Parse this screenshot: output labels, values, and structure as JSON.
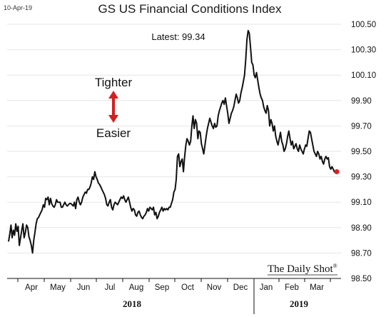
{
  "date_stamp": "10-Apr-19",
  "latest_label": "Latest:  99.34",
  "annotation": {
    "up_label": "Tighter",
    "down_label": "Easier",
    "arrow_color": "#d42020"
  },
  "brand": "The Daily Shot",
  "brand_mark": "®",
  "chart_data": {
    "type": "line",
    "title": "GS US Financial Conditions Index",
    "xlabel": "",
    "ylabel": "",
    "ylim": [
      98.5,
      100.5
    ],
    "yticks": [
      "100.50",
      "100.30",
      "100.10",
      "99.90",
      "99.70",
      "99.50",
      "99.30",
      "99.10",
      "98.90",
      "98.70",
      "98.50"
    ],
    "month_labels": [
      "Apr",
      "May",
      "Jun",
      "Jul",
      "Aug",
      "Sep",
      "Oct",
      "Nov",
      "Dec",
      "Jan",
      "Feb",
      "Mar"
    ],
    "year_labels": [
      "2018",
      "2019"
    ],
    "line_color": "#111111",
    "marker_color": "#e02020",
    "grid": true,
    "series": [
      {
        "values": [
          98.79,
          98.85,
          98.92,
          98.82,
          98.88,
          98.84,
          98.93,
          98.87,
          98.91,
          98.76,
          98.82,
          98.88,
          98.93,
          98.82,
          98.86,
          98.92,
          98.9,
          98.83,
          98.8,
          98.76,
          98.7,
          98.8,
          98.86,
          98.93,
          98.97,
          98.98,
          99.0,
          99.02,
          99.04,
          99.08,
          99.06,
          99.13,
          99.12,
          99.14,
          99.08,
          99.13,
          99.09,
          99.07,
          99.06,
          99.08,
          99.12,
          99.1,
          99.1,
          99.1,
          99.06,
          99.06,
          99.08,
          99.1,
          99.08,
          99.07,
          99.08,
          99.09,
          99.09,
          99.08,
          99.07,
          99.1,
          99.05,
          99.12,
          99.14,
          99.1,
          99.08,
          99.1,
          99.14,
          99.16,
          99.18,
          99.17,
          99.2,
          99.2,
          99.22,
          99.25,
          99.3,
          99.28,
          99.34,
          99.3,
          99.28,
          99.25,
          99.24,
          99.22,
          99.2,
          99.18,
          99.16,
          99.13,
          99.08,
          99.07,
          99.1,
          99.12,
          99.06,
          99.04,
          99.08,
          99.1,
          99.09,
          99.08,
          99.1,
          99.12,
          99.14,
          99.13,
          99.15,
          99.12,
          99.1,
          99.12,
          99.14,
          99.1,
          99.06,
          99.03,
          99.05,
          99.04,
          99.0,
          98.99,
          99.02,
          99.03,
          99.0,
          98.98,
          98.97,
          98.99,
          99.0,
          99.02,
          99.05,
          99.03,
          99.06,
          99.05,
          99.04,
          99.06,
          99.0,
          99.02,
          98.97,
          98.99,
          99.02,
          99.04,
          99.06,
          99.03,
          99.05,
          99.04,
          99.05,
          99.04,
          99.06,
          99.06,
          99.09,
          99.12,
          99.18,
          99.2,
          99.28,
          99.46,
          99.48,
          99.38,
          99.42,
          99.44,
          99.34,
          99.46,
          99.55,
          99.6,
          99.58,
          99.55,
          99.58,
          99.7,
          99.78,
          99.68,
          99.75,
          99.72,
          99.6,
          99.66,
          99.65,
          99.56,
          99.52,
          99.48,
          99.55,
          99.62,
          99.68,
          99.72,
          99.76,
          99.73,
          99.7,
          99.68,
          99.72,
          99.69,
          99.7,
          99.78,
          99.82,
          99.85,
          99.88,
          99.9,
          99.87,
          99.92,
          99.86,
          99.8,
          99.72,
          99.76,
          99.8,
          99.82,
          99.85,
          99.9,
          99.95,
          99.92,
          99.88,
          99.9,
          99.96,
          100.0,
          100.05,
          100.1,
          100.22,
          100.38,
          100.45,
          100.43,
          100.32,
          100.2,
          100.18,
          100.1,
          100.08,
          100.12,
          100.06,
          100.0,
          99.95,
          99.92,
          99.9,
          99.85,
          99.82,
          99.8,
          99.86,
          99.82,
          99.7,
          99.75,
          99.72,
          99.66,
          99.7,
          99.62,
          99.58,
          99.55,
          99.6,
          99.65,
          99.58,
          99.55,
          99.5,
          99.52,
          99.56,
          99.62,
          99.66,
          99.6,
          99.55,
          99.58,
          99.52,
          99.54,
          99.56,
          99.52,
          99.5,
          99.55,
          99.52,
          99.5,
          99.48,
          99.52,
          99.55,
          99.54,
          99.6,
          99.66,
          99.65,
          99.6,
          99.55,
          99.5,
          99.48,
          99.46,
          99.5,
          99.48,
          99.44,
          99.46,
          99.42,
          99.4,
          99.44,
          99.46,
          99.44,
          99.45,
          99.38,
          99.36,
          99.38,
          99.36,
          99.34,
          99.33,
          99.34
        ]
      }
    ]
  }
}
